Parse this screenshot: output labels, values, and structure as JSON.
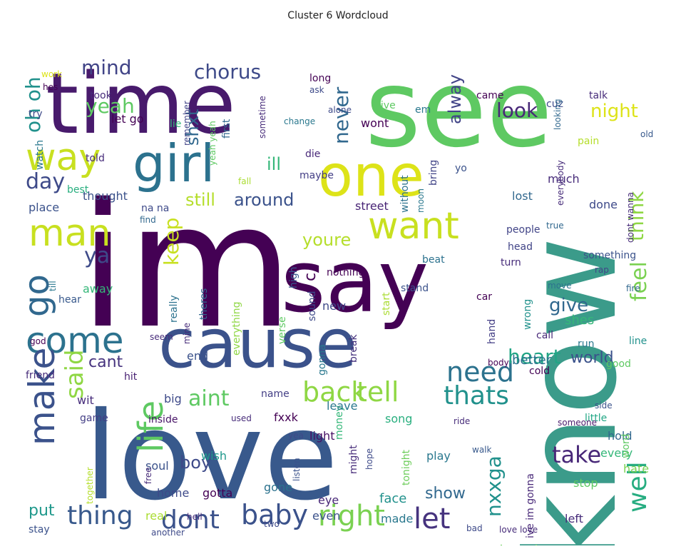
{
  "title": "Cluster 6 Wordcloud",
  "background": "#ffffff",
  "colormap": "viridis",
  "words": [
    {
      "text": "love",
      "color": "#38598c"
    },
    {
      "text": "im",
      "color": "#440154"
    },
    {
      "text": "know",
      "color": "#3b9b8a"
    },
    {
      "text": "see",
      "color": "#5ec962"
    },
    {
      "text": "time",
      "color": "#481a6c"
    },
    {
      "text": "cause",
      "color": "#3b528b"
    },
    {
      "text": "say",
      "color": "#440154"
    },
    {
      "text": "one",
      "color": "#dde318"
    },
    {
      "text": "girl",
      "color": "#2c728e"
    },
    {
      "text": "way",
      "color": "#c8e020"
    },
    {
      "text": "man",
      "color": "#c8e020"
    },
    {
      "text": "want",
      "color": "#c8e020"
    },
    {
      "text": "come",
      "color": "#2c728e"
    },
    {
      "text": "make",
      "color": "#3b528b"
    },
    {
      "text": "life",
      "color": "#5ec962"
    },
    {
      "text": "go",
      "color": "#31688e"
    },
    {
      "text": "said",
      "color": "#8fd744"
    },
    {
      "text": "back",
      "color": "#8fd744"
    },
    {
      "text": "tell",
      "color": "#8fd744"
    },
    {
      "text": "thats",
      "color": "#21918c"
    },
    {
      "text": "need",
      "color": "#2c728e"
    },
    {
      "text": "right",
      "color": "#7ad151"
    },
    {
      "text": "thing",
      "color": "#38598c"
    },
    {
      "text": "dont",
      "color": "#3b528b"
    },
    {
      "text": "baby",
      "color": "#3b528b"
    },
    {
      "text": "let",
      "color": "#46337e"
    },
    {
      "text": "well",
      "color": "#27ad81"
    },
    {
      "text": "take",
      "color": "#482878"
    },
    {
      "text": "feel",
      "color": "#7ad151"
    },
    {
      "text": "think",
      "color": "#8fd744"
    },
    {
      "text": "nxxga",
      "color": "#21918c"
    },
    {
      "text": "heart",
      "color": "#21a585"
    },
    {
      "text": "aint",
      "color": "#5ec962"
    },
    {
      "text": "keep",
      "color": "#c8e020"
    },
    {
      "text": "ya",
      "color": "#3e4a89"
    },
    {
      "text": "day",
      "color": "#3e4a89"
    },
    {
      "text": "chorus",
      "color": "#3e4a89"
    },
    {
      "text": "oh oh",
      "color": "#21918c"
    },
    {
      "text": "yeah",
      "color": "#5ec962"
    },
    {
      "text": "mind",
      "color": "#414487"
    },
    {
      "text": "shxt",
      "color": "#31688e"
    },
    {
      "text": "never",
      "color": "#31688e"
    },
    {
      "text": "alway",
      "color": "#414487"
    },
    {
      "text": "look",
      "color": "#482878"
    },
    {
      "text": "night",
      "color": "#dde318"
    },
    {
      "text": "still",
      "color": "#b5de2b"
    },
    {
      "text": "around",
      "color": "#3b528b"
    },
    {
      "text": "ill",
      "color": "#35b779"
    },
    {
      "text": "youre",
      "color": "#b5de2b"
    },
    {
      "text": "give",
      "color": "#31688e"
    },
    {
      "text": "world",
      "color": "#3b528b"
    },
    {
      "text": "better",
      "color": "#2c728e"
    },
    {
      "text": "cant",
      "color": "#46337e"
    },
    {
      "text": "boy",
      "color": "#3e4a89"
    },
    {
      "text": "show",
      "color": "#31688e"
    },
    {
      "text": "dont know",
      "color": "#6ccd5a"
    },
    {
      "text": "put",
      "color": "#1f988b"
    },
    {
      "text": "shes",
      "color": "#35b779"
    },
    {
      "text": "feeling",
      "color": "#472c7a"
    },
    {
      "text": "wanna",
      "color": "#482173"
    },
    {
      "text": "la la",
      "color": "#46337e"
    },
    {
      "text": "bxxch",
      "color": "#31688e"
    },
    {
      "text": "dream",
      "color": "#31688e"
    },
    {
      "text": "made",
      "color": "#2a788e"
    },
    {
      "text": "even",
      "color": "#3b528b"
    },
    {
      "text": "eye",
      "color": "#482878"
    },
    {
      "text": "gotta",
      "color": "#440154"
    },
    {
      "text": "face",
      "color": "#21918c"
    },
    {
      "text": "stop",
      "color": "#5ec962"
    },
    {
      "text": "hate",
      "color": "#7ad151"
    },
    {
      "text": "every",
      "color": "#35b779"
    },
    {
      "text": "hold",
      "color": "#31688e"
    },
    {
      "text": "play",
      "color": "#2a788e"
    },
    {
      "text": "home",
      "color": "#3e4a89"
    },
    {
      "text": "wish",
      "color": "#1f988b"
    },
    {
      "text": "soul",
      "color": "#3b528b"
    },
    {
      "text": "real",
      "color": "#aadc32"
    },
    {
      "text": "gone",
      "color": "#2c728e"
    },
    {
      "text": "might",
      "color": "#472c7a"
    },
    {
      "text": "money",
      "color": "#35b779"
    },
    {
      "text": "light",
      "color": "#471063"
    },
    {
      "text": "song",
      "color": "#29af7f"
    },
    {
      "text": "little",
      "color": "#21a685"
    },
    {
      "text": "fxxk",
      "color": "#440154"
    },
    {
      "text": "leave",
      "color": "#2a788e"
    },
    {
      "text": "name",
      "color": "#433e85"
    },
    {
      "text": "inside",
      "color": "#481467"
    },
    {
      "text": "big",
      "color": "#3e4a89"
    },
    {
      "text": "game",
      "color": "#433e85"
    },
    {
      "text": "wit",
      "color": "#472d7b"
    },
    {
      "text": "friend",
      "color": "#472c7a"
    },
    {
      "text": "hit",
      "color": "#482173"
    },
    {
      "text": "end",
      "color": "#3b528b"
    },
    {
      "text": "hear",
      "color": "#38598c"
    },
    {
      "text": "away",
      "color": "#35b779"
    },
    {
      "text": "really",
      "color": "#2c728e"
    },
    {
      "text": "theres",
      "color": "#31688e"
    },
    {
      "text": "everything",
      "color": "#8fd744"
    },
    {
      "text": "verse",
      "color": "#5ec962"
    },
    {
      "text": "sound",
      "color": "#3e4a89"
    },
    {
      "text": "high",
      "color": "#38598c"
    },
    {
      "text": "new",
      "color": "#3e4a89"
    },
    {
      "text": "gonna",
      "color": "#2a788e"
    },
    {
      "text": "break",
      "color": "#46337e"
    },
    {
      "text": "start",
      "color": "#aadc32"
    },
    {
      "text": "tonight",
      "color": "#6ccd5a"
    },
    {
      "text": "wrong",
      "color": "#21918c"
    },
    {
      "text": "hand",
      "color": "#433e85"
    },
    {
      "text": "call",
      "color": "#482878"
    },
    {
      "text": "ive im gonna",
      "color": "#482878"
    },
    {
      "text": "nothing",
      "color": "#440154"
    },
    {
      "text": "beat",
      "color": "#2c728e"
    },
    {
      "text": "turn",
      "color": "#472c7a"
    },
    {
      "text": "head",
      "color": "#414487"
    },
    {
      "text": "something",
      "color": "#3b528b"
    },
    {
      "text": "people",
      "color": "#414487"
    },
    {
      "text": "true",
      "color": "#31688e"
    },
    {
      "text": "rap",
      "color": "#414487"
    },
    {
      "text": "move",
      "color": "#2c728e"
    },
    {
      "text": "street",
      "color": "#482475"
    },
    {
      "text": "lost",
      "color": "#31688e"
    },
    {
      "text": "done",
      "color": "#3e4a89"
    },
    {
      "text": "bring",
      "color": "#414487"
    },
    {
      "text": "without",
      "color": "#2c728e"
    },
    {
      "text": "much",
      "color": "#472c7a"
    },
    {
      "text": "maybe",
      "color": "#433e85"
    },
    {
      "text": "told",
      "color": "#472c7a"
    },
    {
      "text": "thought",
      "color": "#3b528b"
    },
    {
      "text": "best",
      "color": "#29af7f"
    },
    {
      "text": "place",
      "color": "#3b528b"
    },
    {
      "text": "na na",
      "color": "#3e4a89"
    },
    {
      "text": "find",
      "color": "#31688e"
    },
    {
      "text": "watch",
      "color": "#2a788e"
    },
    {
      "text": "let go",
      "color": "#440154"
    },
    {
      "text": "try",
      "color": "#3e4a89"
    },
    {
      "text": "took",
      "color": "#472c7a"
    },
    {
      "text": "lie",
      "color": "#35b779"
    },
    {
      "text": "hes",
      "color": "#440154"
    },
    {
      "text": "work",
      "color": "#dde318"
    },
    {
      "text": "long",
      "color": "#440154"
    },
    {
      "text": "ask",
      "color": "#3e4a89"
    },
    {
      "text": "remember",
      "color": "#414487"
    },
    {
      "text": "sometime",
      "color": "#472c7a"
    },
    {
      "text": "first",
      "color": "#31688e"
    },
    {
      "text": "change",
      "color": "#2a788e"
    },
    {
      "text": "alone",
      "color": "#3e4a89"
    },
    {
      "text": "em",
      "color": "#2a788e"
    },
    {
      "text": "live",
      "color": "#5ec962"
    },
    {
      "text": "came",
      "color": "#440154"
    },
    {
      "text": "cuz",
      "color": "#3e4a89"
    },
    {
      "text": "talk",
      "color": "#472c7a"
    },
    {
      "text": "looking",
      "color": "#31688e"
    },
    {
      "text": "wont",
      "color": "#440154"
    },
    {
      "text": "yo",
      "color": "#3b528b"
    },
    {
      "text": "pain",
      "color": "#b5de2b"
    },
    {
      "text": "old",
      "color": "#38598c"
    },
    {
      "text": "die",
      "color": "#482878"
    },
    {
      "text": "fall",
      "color": "#aadc32"
    },
    {
      "text": "yeah yeah",
      "color": "#5ec962"
    },
    {
      "text": "moon",
      "color": "#2a788e"
    },
    {
      "text": "everybody",
      "color": "#472c7a"
    },
    {
      "text": "dont wanna",
      "color": "#472c7a"
    },
    {
      "text": "fire",
      "color": "#31688e"
    },
    {
      "text": "car",
      "color": "#440154"
    },
    {
      "text": "stand",
      "color": "#3b528b"
    },
    {
      "text": "body",
      "color": "#440154"
    },
    {
      "text": "run",
      "color": "#2a788e"
    },
    {
      "text": "line",
      "color": "#21918c"
    },
    {
      "text": "cold",
      "color": "#440154"
    },
    {
      "text": "good",
      "color": "#5ec962"
    },
    {
      "text": "side",
      "color": "#3b528b"
    },
    {
      "text": "someone",
      "color": "#481a6c"
    },
    {
      "text": "ride",
      "color": "#472c7a"
    },
    {
      "text": "walk",
      "color": "#38598c"
    },
    {
      "text": "word",
      "color": "#5ec962"
    },
    {
      "text": "used",
      "color": "#472c7a"
    },
    {
      "text": "yea",
      "color": "#3e4a89"
    },
    {
      "text": "hope",
      "color": "#3e4a89"
    },
    {
      "text": "listen",
      "color": "#3b528b"
    },
    {
      "text": "two",
      "color": "#3e4a89"
    },
    {
      "text": "must",
      "color": "#440154"
    },
    {
      "text": "going",
      "color": "#472c7a"
    },
    {
      "text": "bad",
      "color": "#3e4a89"
    },
    {
      "text": "love love",
      "color": "#472c7a"
    },
    {
      "text": "left",
      "color": "#472c7a"
    },
    {
      "text": "ass",
      "color": "#440154"
    },
    {
      "text": "believe",
      "color": "#8fd744"
    },
    {
      "text": "hard",
      "color": "#440154"
    },
    {
      "text": "stay",
      "color": "#3b528b"
    },
    {
      "text": "another",
      "color": "#3e4a89"
    },
    {
      "text": "hell",
      "color": "#472c7a"
    },
    {
      "text": "free",
      "color": "#472c7a"
    },
    {
      "text": "together",
      "color": "#b5de2b"
    },
    {
      "text": "seem",
      "color": "#472c7a"
    },
    {
      "text": "mine",
      "color": "#472c7a"
    },
    {
      "text": "god",
      "color": "#440154"
    },
    {
      "text": "till",
      "color": "#2a788e"
    },
    {
      "text": "c",
      "color": "#440154"
    }
  ]
}
